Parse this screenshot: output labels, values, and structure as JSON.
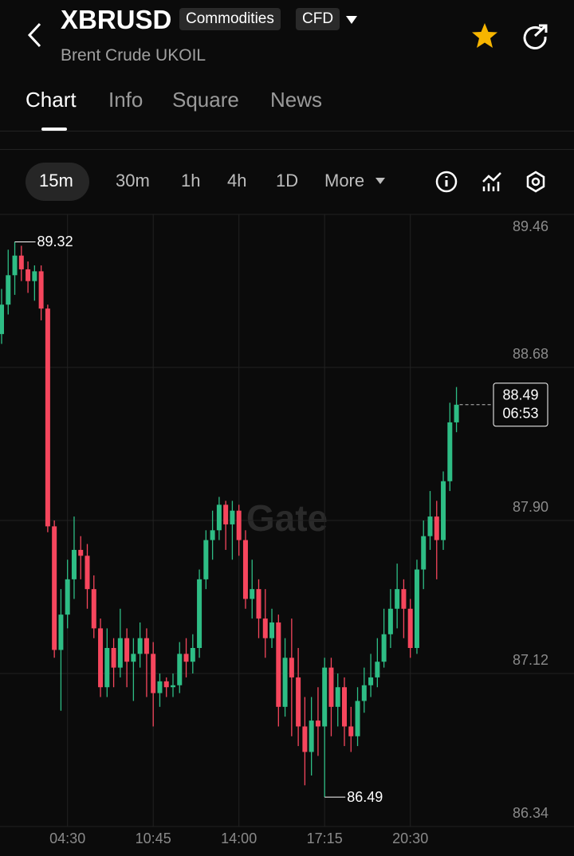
{
  "header": {
    "symbol": "XBRUSD",
    "tags": [
      "Commodities",
      "CFD"
    ],
    "subtitle": "Brent Crude UKOIL"
  },
  "tabs": [
    "Chart",
    "Info",
    "Square",
    "News"
  ],
  "intervals": [
    "15m",
    "30m",
    "1h",
    "4h",
    "1D",
    "More"
  ],
  "watermark": "Gate",
  "chart_data": {
    "type": "candlestick",
    "categories": [
      null,
      null,
      null,
      null,
      null,
      null,
      null,
      null,
      null,
      null,
      "04:30",
      null,
      null,
      null,
      null,
      null,
      null,
      null,
      null,
      null,
      null,
      null,
      null,
      "10:45",
      null,
      null,
      null,
      null,
      null,
      null,
      null,
      null,
      null,
      null,
      null,
      null,
      "14:00",
      null,
      null,
      null,
      null,
      null,
      null,
      null,
      null,
      null,
      null,
      null,
      null,
      "17:15",
      null,
      null,
      null,
      null,
      null,
      null,
      null,
      null,
      null,
      null,
      null,
      null,
      "20:30",
      null,
      null,
      null,
      null,
      null,
      null,
      null
    ],
    "open": [
      88.85,
      89.0,
      89.15,
      89.25,
      89.18,
      89.12,
      89.17,
      88.98,
      87.87,
      87.24,
      87.42,
      87.6,
      87.75,
      87.72,
      87.55,
      87.35,
      87.05,
      87.25,
      87.15,
      87.3,
      87.18,
      87.22,
      87.3,
      87.22,
      87.02,
      87.08,
      87.05,
      87.06,
      87.22,
      87.18,
      87.25,
      87.6,
      87.8,
      87.85,
      87.98,
      87.88,
      87.95,
      87.8,
      87.5,
      87.55,
      87.4,
      87.3,
      87.38,
      86.95,
      87.2,
      87.1,
      86.85,
      86.72,
      86.88,
      86.85,
      87.15,
      86.95,
      87.05,
      86.85,
      86.8,
      86.98,
      87.06,
      87.1,
      87.18,
      87.32,
      87.45,
      87.55,
      87.45,
      87.25,
      87.65,
      87.82,
      87.92,
      87.8,
      88.1,
      88.4
    ],
    "high": [
      89.08,
      89.28,
      89.32,
      89.3,
      89.22,
      89.2,
      89.2,
      89.0,
      87.9,
      87.55,
      87.7,
      87.92,
      87.82,
      87.78,
      87.62,
      87.4,
      87.35,
      87.3,
      87.45,
      87.35,
      87.3,
      87.38,
      87.35,
      87.28,
      87.12,
      87.1,
      87.12,
      87.28,
      87.3,
      87.32,
      87.65,
      87.85,
      87.95,
      88.02,
      88.0,
      88.0,
      87.98,
      87.85,
      87.7,
      87.6,
      87.55,
      87.45,
      87.42,
      87.3,
      87.4,
      87.25,
      87.0,
      87.0,
      87.05,
      87.2,
      87.2,
      87.12,
      87.1,
      86.95,
      87.05,
      87.15,
      87.22,
      87.3,
      87.45,
      87.55,
      87.68,
      87.6,
      87.5,
      87.7,
      87.9,
      88.05,
      88.0,
      88.15,
      88.5,
      88.58
    ],
    "low": [
      88.8,
      88.95,
      89.05,
      89.12,
      89.06,
      89.02,
      88.92,
      87.84,
      87.2,
      86.93,
      87.35,
      87.5,
      87.6,
      87.45,
      87.3,
      87.0,
      87.0,
      87.05,
      87.1,
      87.05,
      86.98,
      87.15,
      87.0,
      86.85,
      86.95,
      87.0,
      87.0,
      87.02,
      87.1,
      87.12,
      87.2,
      87.55,
      87.7,
      87.8,
      87.75,
      87.7,
      87.72,
      87.45,
      87.4,
      87.3,
      87.2,
      87.25,
      86.85,
      86.9,
      86.8,
      86.75,
      86.55,
      86.6,
      86.7,
      86.49,
      86.8,
      86.85,
      86.75,
      86.72,
      86.75,
      86.92,
      87.0,
      87.05,
      87.15,
      87.25,
      87.35,
      87.3,
      87.2,
      87.22,
      87.55,
      87.75,
      87.6,
      87.75,
      88.05,
      88.35
    ],
    "close": [
      89.0,
      89.15,
      89.25,
      89.18,
      89.12,
      89.17,
      88.98,
      87.87,
      87.24,
      87.42,
      87.6,
      87.75,
      87.72,
      87.55,
      87.35,
      87.05,
      87.25,
      87.15,
      87.3,
      87.18,
      87.22,
      87.3,
      87.22,
      87.02,
      87.08,
      87.05,
      87.06,
      87.22,
      87.18,
      87.25,
      87.6,
      87.8,
      87.85,
      87.98,
      87.88,
      87.95,
      87.8,
      87.5,
      87.55,
      87.4,
      87.3,
      87.38,
      86.95,
      87.2,
      87.1,
      86.85,
      86.72,
      86.88,
      86.85,
      87.15,
      86.95,
      87.05,
      86.85,
      86.8,
      86.98,
      87.06,
      87.1,
      87.18,
      87.32,
      87.45,
      87.55,
      87.45,
      87.25,
      87.65,
      87.82,
      87.92,
      87.8,
      88.1,
      88.4,
      88.49
    ],
    "up_color": "#2ebd85",
    "down_color": "#f6465d",
    "ylim": [
      86.34,
      89.46
    ],
    "yticks": [
      86.34,
      87.12,
      {
        "value": 87.9,
        "label": "87.90"
      },
      88.68,
      89.46
    ],
    "grid": true,
    "max_label": "89.32",
    "min_label": "86.49",
    "last_price_label": "88.49",
    "countdown": "06:53"
  }
}
